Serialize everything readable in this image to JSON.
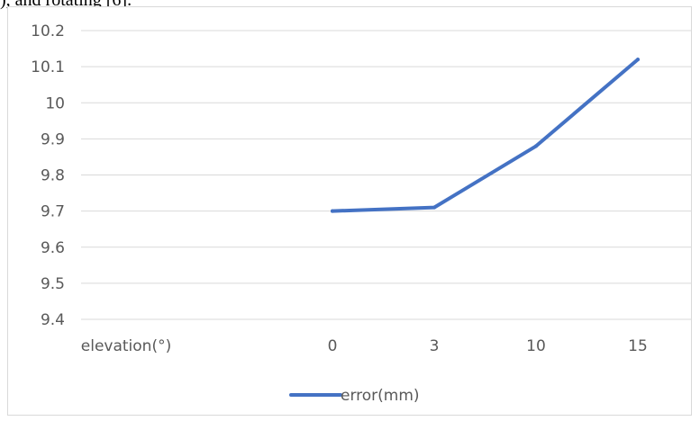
{
  "page": {
    "top_fragment": "), and rotating [6]."
  },
  "chart_data": {
    "type": "line",
    "title": "",
    "xlabel": "",
    "ylabel": "",
    "categories": [
      "elevation(°)",
      "0",
      "3",
      "10",
      "15"
    ],
    "series": [
      {
        "name": "error(mm)",
        "values": [
          null,
          9.7,
          9.71,
          9.88,
          10.12
        ]
      }
    ],
    "y_ticks": [
      "9.4",
      "9.5",
      "9.6",
      "9.7",
      "9.8",
      "9.9",
      "10",
      "10.1",
      "10.2"
    ],
    "ylim": [
      9.4,
      10.2
    ],
    "grid": true,
    "legend": "bottom",
    "series_color": "#4472c4"
  }
}
